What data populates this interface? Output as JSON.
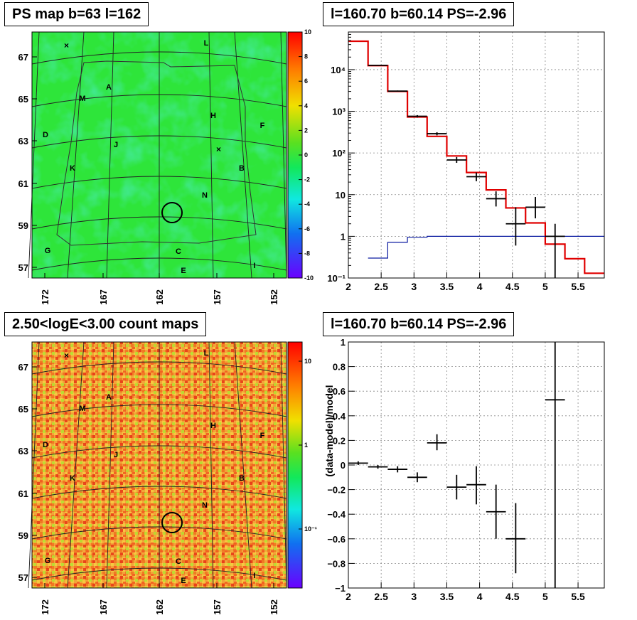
{
  "colors": {
    "ps_map_bg": "#2ee53a",
    "count_map_bg": "#f0a030",
    "model_line": "#e00000",
    "baseline_line": "#0a1aa0",
    "frame": "#000000"
  },
  "panels": {
    "ps_map": {
      "title": "PS map b=63 l=162",
      "y_ticks": [
        "67",
        "65",
        "63",
        "61",
        "59",
        "57"
      ],
      "x_ticks": [
        "172",
        "167",
        "162",
        "157",
        "152"
      ],
      "colorbar_ticks": [
        "10",
        "8",
        "6",
        "4",
        "2",
        "0",
        "-2",
        "-4",
        "-6",
        "-8",
        "-10"
      ],
      "region_labels": [
        "L",
        "A",
        "M",
        "H",
        "F",
        "D",
        "J",
        "B",
        "K",
        "N",
        "G",
        "C",
        "I",
        "E"
      ]
    },
    "count_map": {
      "title": "2.50<logE<3.00 count maps",
      "y_ticks": [
        "67",
        "65",
        "63",
        "61",
        "59",
        "57"
      ],
      "x_ticks": [
        "172",
        "167",
        "162",
        "157",
        "152"
      ],
      "colorbar_ticks": [
        "10",
        "1",
        "10⁻¹"
      ],
      "region_labels": [
        "L",
        "A",
        "M",
        "H",
        "F",
        "D",
        "J",
        "B",
        "K",
        "N",
        "G",
        "C",
        "I",
        "E"
      ]
    },
    "spectrum": {
      "title": "l=160.70 b=60.14 PS=-2.96"
    },
    "residual": {
      "title": "l=160.70 b=60.14 PS=-2.96"
    }
  },
  "chart_data": [
    {
      "type": "heatmap",
      "title": "PS map b=63 l=162",
      "xlabel": "",
      "ylabel": "",
      "x_ticks": [
        172,
        167,
        162,
        157,
        152
      ],
      "y_ticks": [
        67,
        65,
        63,
        61,
        59,
        57
      ],
      "zlim": [
        -10,
        10
      ],
      "colorbar_ticks": [
        10,
        8,
        6,
        4,
        2,
        0,
        -2,
        -4,
        -6,
        -8,
        -10
      ],
      "marked_source": {
        "l": 160.7,
        "b": 60.14
      }
    },
    {
      "type": "heatmap",
      "title": "2.50<logE<3.00 count maps",
      "xlabel": "",
      "ylabel": "",
      "x_ticks": [
        172,
        167,
        162,
        157,
        152
      ],
      "y_ticks": [
        67,
        65,
        63,
        61,
        59,
        57
      ],
      "z_scale": "log",
      "colorbar_ticks": [
        "10",
        "1",
        "10⁻¹"
      ],
      "marked_source": {
        "l": 160.7,
        "b": 60.14
      }
    },
    {
      "type": "line",
      "title": "l=160.70 b=60.14 PS=-2.96",
      "xlabel": "",
      "ylabel": "",
      "y_scale": "log",
      "xlim": [
        2,
        5.9
      ],
      "ylim": [
        0.1,
        80000
      ],
      "grid": true,
      "x_ticks": [
        "2",
        "2.5",
        "3",
        "3.5",
        "4",
        "4.5",
        "5",
        "5.5"
      ],
      "y_ticks": [
        "10⁻¹",
        "1",
        "10",
        "10²",
        "10³",
        "10⁴"
      ],
      "series": [
        {
          "style": "step",
          "color": "#e00000",
          "bin_edges": [
            2,
            2.3,
            2.6,
            2.9,
            3.2,
            3.5,
            3.8,
            4.1,
            4.4,
            4.7,
            5.0,
            5.3,
            5.6,
            5.9
          ],
          "values": [
            48000,
            12500,
            3000,
            730,
            250,
            85,
            34,
            13,
            4.8,
            2.1,
            0.65,
            0.29,
            0.13
          ]
        },
        {
          "style": "step",
          "color": "#0a1aa0",
          "bin_edges": [
            2.3,
            2.6,
            2.9,
            3.2,
            3.5,
            5.9
          ],
          "values": [
            0.3,
            0.72,
            0.95,
            1.0,
            1.0
          ]
        },
        {
          "style": "errorbars",
          "color": "#000000",
          "points": [
            {
              "x": 2.45,
              "y": 12700,
              "xerr": 0.15,
              "ylo": 12500,
              "yhi": 12900
            },
            {
              "x": 2.75,
              "y": 3050,
              "xerr": 0.15,
              "ylo": 2950,
              "yhi": 3150
            },
            {
              "x": 3.05,
              "y": 760,
              "xerr": 0.15,
              "ylo": 710,
              "yhi": 810
            },
            {
              "x": 3.35,
              "y": 290,
              "xerr": 0.15,
              "ylo": 265,
              "yhi": 315
            },
            {
              "x": 3.65,
              "y": 68,
              "xerr": 0.15,
              "ylo": 58,
              "yhi": 80
            },
            {
              "x": 3.95,
              "y": 27,
              "xerr": 0.15,
              "ylo": 21,
              "yhi": 34
            },
            {
              "x": 4.25,
              "y": 8,
              "xerr": 0.15,
              "ylo": 5.2,
              "yhi": 12
            },
            {
              "x": 4.55,
              "y": 2,
              "xerr": 0.15,
              "ylo": 0.6,
              "yhi": 5
            },
            {
              "x": 4.85,
              "y": 5,
              "xerr": 0.15,
              "ylo": 2.7,
              "yhi": 8.8
            },
            {
              "x": 5.15,
              "y": 1,
              "xerr": 0.15,
              "ylo": 0.1,
              "yhi": 2
            }
          ]
        }
      ]
    },
    {
      "type": "scatter",
      "title": "l=160.70 b=60.14 PS=-2.96",
      "xlabel": "",
      "ylabel": "(data-model)/model",
      "xlim": [
        2,
        5.9
      ],
      "ylim": [
        -1,
        1
      ],
      "grid": true,
      "x_ticks": [
        "2",
        "2.5",
        "3",
        "3.5",
        "4",
        "4.5",
        "5",
        "5.5"
      ],
      "y_ticks": [
        "1",
        "0.8",
        "0.6",
        "0.4",
        "0.2",
        "0",
        "−0.2",
        "−0.4",
        "−0.6",
        "−0.8",
        "−1"
      ],
      "series": [
        {
          "style": "errorbars",
          "color": "#000000",
          "points": [
            {
              "x": 2.15,
              "y": 0.015,
              "xerr": 0.15,
              "ylo": 0.0,
              "yhi": 0.03
            },
            {
              "x": 2.45,
              "y": -0.015,
              "xerr": 0.15,
              "ylo": -0.03,
              "yhi": 0.0
            },
            {
              "x": 2.75,
              "y": -0.035,
              "xerr": 0.15,
              "ylo": -0.06,
              "yhi": -0.01
            },
            {
              "x": 3.05,
              "y": -0.1,
              "xerr": 0.15,
              "ylo": -0.14,
              "yhi": -0.06
            },
            {
              "x": 3.35,
              "y": 0.18,
              "xerr": 0.15,
              "ylo": 0.12,
              "yhi": 0.25
            },
            {
              "x": 3.65,
              "y": -0.18,
              "xerr": 0.15,
              "ylo": -0.28,
              "yhi": -0.08
            },
            {
              "x": 3.95,
              "y": -0.16,
              "xerr": 0.15,
              "ylo": -0.32,
              "yhi": -0.01
            },
            {
              "x": 4.25,
              "y": -0.38,
              "xerr": 0.15,
              "ylo": -0.6,
              "yhi": -0.16
            },
            {
              "x": 4.55,
              "y": -0.6,
              "xerr": 0.15,
              "ylo": -0.88,
              "yhi": -0.31
            },
            {
              "x": 5.15,
              "y": 0.53,
              "xerr": 0.15,
              "ylo": -1.0,
              "yhi": 1.0
            }
          ]
        }
      ]
    }
  ]
}
